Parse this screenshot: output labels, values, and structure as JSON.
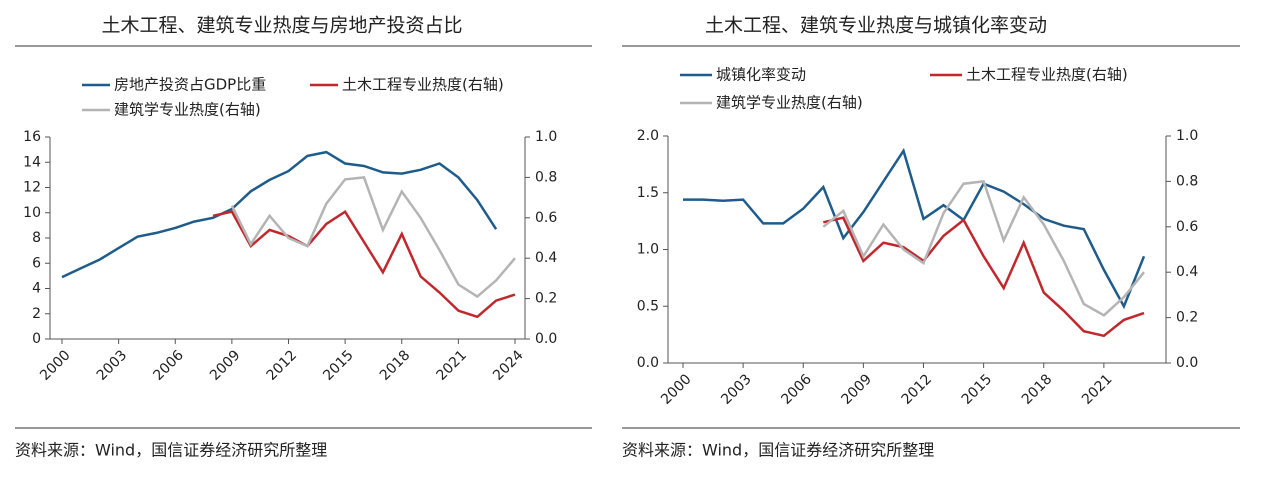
{
  "chart_data": [
    {
      "type": "line",
      "title": "土木工程、建筑专业热度与房地产投资占比",
      "source": "资料来源：Wind，国信证券经济研究所整理",
      "x": [
        2000,
        2001,
        2002,
        2003,
        2004,
        2005,
        2006,
        2007,
        2008,
        2009,
        2010,
        2011,
        2012,
        2013,
        2014,
        2015,
        2016,
        2017,
        2018,
        2019,
        2020,
        2021,
        2022,
        2023,
        2024
      ],
      "xlim": [
        2000,
        2024
      ],
      "xticks": [
        2000,
        2003,
        2006,
        2009,
        2012,
        2015,
        2018,
        2021,
        2024
      ],
      "ylim": [
        0,
        16
      ],
      "yticks": [
        0,
        2,
        4,
        6,
        8,
        10,
        12,
        14,
        16
      ],
      "y2lim": [
        0,
        1
      ],
      "y2ticks": [
        {
          "value": 0,
          "label": "0.0"
        },
        {
          "value": 0.2,
          "label": "0.2"
        },
        {
          "value": 0.4,
          "label": "0.4"
        },
        {
          "value": 0.6,
          "label": "0.6"
        },
        {
          "value": 0.8,
          "label": "0.8"
        },
        {
          "value": 1,
          "label": "1.0"
        }
      ],
      "series": [
        {
          "name": "房地产投资占GDP比重",
          "color": "#1f5c8b",
          "values": [
            4.9,
            5.6,
            6.3,
            7.2,
            8.1,
            8.4,
            8.8,
            9.3,
            9.6,
            10.3,
            11.7,
            12.6,
            13.3,
            14.5,
            14.8,
            13.9,
            13.7,
            13.2,
            13.1,
            13.4,
            13.9,
            12.8,
            11.0,
            8.7,
            null
          ]
        },
        {
          "name": "土木工程专业热度(右轴)",
          "color": "#c0282d",
          "axis": "y2",
          "values": [
            null,
            null,
            null,
            null,
            null,
            null,
            null,
            null,
            0.61,
            0.63,
            0.46,
            0.54,
            0.51,
            0.46,
            0.57,
            0.63,
            0.48,
            0.33,
            0.52,
            0.31,
            0.23,
            0.14,
            0.11,
            0.19,
            0.22
          ]
        },
        {
          "name": "建筑学专业热度(右轴)",
          "color": "#b4b4b4",
          "axis": "y2",
          "values": [
            null,
            null,
            null,
            null,
            null,
            null,
            null,
            null,
            null,
            0.66,
            0.47,
            0.61,
            0.5,
            0.46,
            0.67,
            0.79,
            0.8,
            0.54,
            0.73,
            0.6,
            0.44,
            0.27,
            0.21,
            0.29,
            0.4
          ]
        }
      ]
    },
    {
      "type": "line",
      "title": "土木工程、建筑专业热度与城镇化率变动",
      "source": "资料来源：Wind，国信证券经济研究所整理",
      "x": [
        2000,
        2001,
        2002,
        2003,
        2004,
        2005,
        2006,
        2007,
        2008,
        2009,
        2010,
        2011,
        2012,
        2013,
        2014,
        2015,
        2016,
        2017,
        2018,
        2019,
        2020,
        2021,
        2022,
        2023
      ],
      "xlim": [
        2000,
        2024
      ],
      "xticks": [
        2000,
        2003,
        2006,
        2009,
        2012,
        2015,
        2018,
        2021
      ],
      "ylim": [
        0,
        2
      ],
      "yticks": [
        {
          "value": 0,
          "label": "0.0"
        },
        {
          "value": 0.5,
          "label": "0.5"
        },
        {
          "value": 1,
          "label": "1.0"
        },
        {
          "value": 1.5,
          "label": "1.5"
        },
        {
          "value": 2,
          "label": "2.0"
        }
      ],
      "y2lim": [
        0,
        1
      ],
      "y2ticks": [
        {
          "value": 0,
          "label": "0.0"
        },
        {
          "value": 0.2,
          "label": "0.2"
        },
        {
          "value": 0.4,
          "label": "0.4"
        },
        {
          "value": 0.6,
          "label": "0.6"
        },
        {
          "value": 0.8,
          "label": "0.8"
        },
        {
          "value": 1,
          "label": "1.0"
        }
      ],
      "series": [
        {
          "name": "城镇化率变动",
          "color": "#1f5c8b",
          "values": [
            1.44,
            1.44,
            1.43,
            1.44,
            1.23,
            1.23,
            1.36,
            1.55,
            1.1,
            1.33,
            1.6,
            1.87,
            1.27,
            1.39,
            1.26,
            1.58,
            1.51,
            1.4,
            1.27,
            1.21,
            1.18,
            0.82,
            0.5,
            0.94
          ]
        },
        {
          "name": "土木工程专业热度(右轴)",
          "color": "#c0282d",
          "axis": "y2",
          "values": [
            null,
            null,
            null,
            null,
            null,
            null,
            null,
            0.62,
            0.64,
            0.45,
            0.53,
            0.51,
            0.45,
            0.56,
            0.63,
            0.47,
            0.33,
            0.53,
            0.31,
            0.23,
            0.14,
            0.12,
            0.19,
            0.22
          ]
        },
        {
          "name": "建筑学专业热度(右轴)",
          "color": "#b4b4b4",
          "axis": "y2",
          "values": [
            null,
            null,
            null,
            null,
            null,
            null,
            null,
            0.6,
            0.67,
            0.47,
            0.61,
            0.5,
            0.44,
            0.66,
            0.79,
            0.8,
            0.54,
            0.73,
            0.61,
            0.45,
            0.26,
            0.21,
            0.29,
            0.4
          ]
        }
      ]
    }
  ]
}
